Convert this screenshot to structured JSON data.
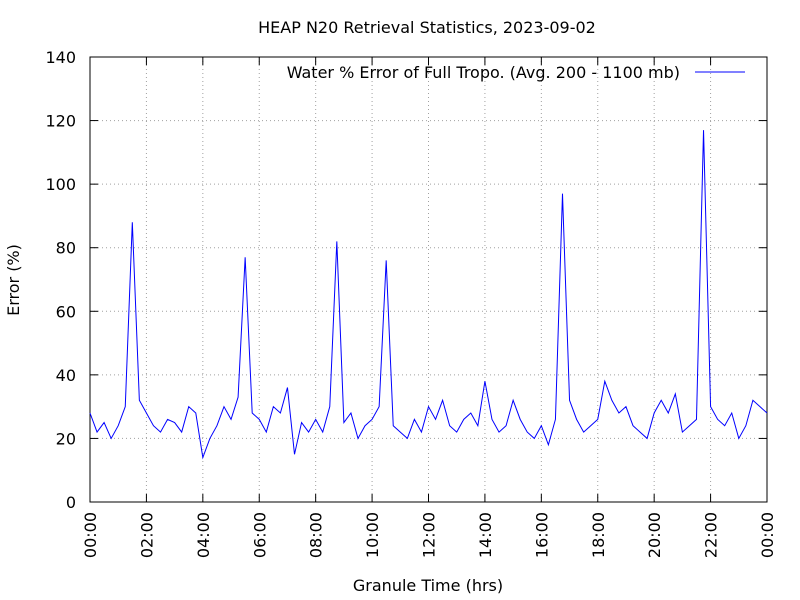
{
  "chart_data": {
    "type": "line",
    "title": "HEAP N20 Retrieval Statistics, 2023-09-02",
    "x_label": "Granule Time (hrs)",
    "y_label": "Error (%)",
    "x": [
      0,
      0.25,
      0.5,
      0.75,
      1,
      1.25,
      1.5,
      1.75,
      2,
      2.25,
      2.5,
      2.75,
      3,
      3.25,
      3.5,
      3.75,
      4,
      4.25,
      4.5,
      4.75,
      5,
      5.25,
      5.5,
      5.75,
      6,
      6.25,
      6.5,
      6.75,
      7,
      7.25,
      7.5,
      7.75,
      8,
      8.25,
      8.5,
      8.75,
      9,
      9.25,
      9.5,
      9.75,
      10,
      10.25,
      10.5,
      10.75,
      11,
      11.25,
      11.5,
      11.75,
      12,
      12.25,
      12.5,
      12.75,
      13,
      13.25,
      13.5,
      13.75,
      14,
      14.25,
      14.5,
      14.75,
      15,
      15.25,
      15.5,
      15.75,
      16,
      16.25,
      16.5,
      16.75,
      17,
      17.25,
      17.5,
      17.75,
      18,
      18.25,
      18.5,
      18.75,
      19,
      19.25,
      19.5,
      19.75,
      20,
      20.25,
      20.5,
      20.75,
      21,
      21.25,
      21.5,
      21.75,
      22,
      22.25,
      22.5,
      22.75,
      23,
      23.25,
      23.5,
      23.75,
      24
    ],
    "series": [
      {
        "name": "Water % Error of Full Tropo. (Avg. 200 - 1100 mb)",
        "color": "#0000ff",
        "values": [
          28,
          22,
          25,
          20,
          24,
          30,
          88,
          32,
          28,
          24,
          22,
          26,
          25,
          22,
          30,
          28,
          14,
          20,
          24,
          30,
          26,
          33,
          77,
          28,
          26,
          22,
          30,
          28,
          36,
          15,
          25,
          22,
          26,
          22,
          30,
          82,
          25,
          28,
          20,
          24,
          26,
          30,
          76,
          24,
          22,
          20,
          26,
          22,
          30,
          26,
          32,
          24,
          22,
          26,
          28,
          24,
          38,
          26,
          22,
          24,
          32,
          26,
          22,
          20,
          24,
          18,
          26,
          97,
          32,
          26,
          22,
          24,
          26,
          38,
          32,
          28,
          30,
          24,
          22,
          20,
          28,
          32,
          28,
          34,
          22,
          24,
          26,
          117,
          30,
          26,
          24,
          28,
          20,
          24,
          32,
          30,
          28
        ]
      }
    ],
    "xlim": [
      0,
      24
    ],
    "xticks": [
      {
        "value": 0,
        "label": "00:00"
      },
      {
        "value": 2,
        "label": "02:00"
      },
      {
        "value": 4,
        "label": "04:00"
      },
      {
        "value": 6,
        "label": "06:00"
      },
      {
        "value": 8,
        "label": "08:00"
      },
      {
        "value": 10,
        "label": "10:00"
      },
      {
        "value": 12,
        "label": "12:00"
      },
      {
        "value": 14,
        "label": "14:00"
      },
      {
        "value": 16,
        "label": "16:00"
      },
      {
        "value": 18,
        "label": "18:00"
      },
      {
        "value": 20,
        "label": "20:00"
      },
      {
        "value": 22,
        "label": "22:00"
      },
      {
        "value": 24,
        "label": "00:00"
      }
    ],
    "ylim": [
      0,
      140
    ],
    "yticks": [
      0,
      20,
      40,
      60,
      80,
      100,
      120,
      140
    ],
    "grid": true,
    "legend": "top-right"
  }
}
